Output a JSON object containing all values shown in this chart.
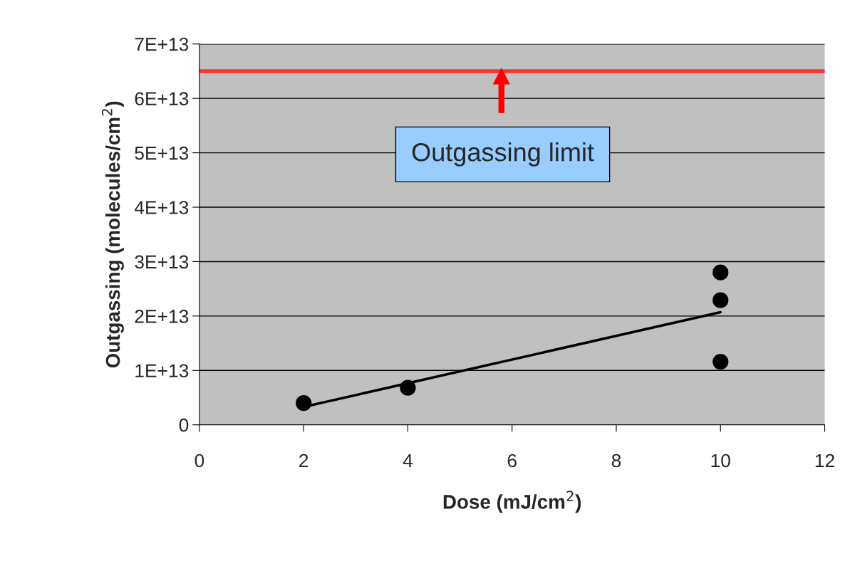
{
  "chart_data": {
    "type": "scatter",
    "xlabel": "Dose (mJ/cm$^{2}$)",
    "ylabel": "Outgassing (molecules/cm$^{2}$)",
    "series": [
      {
        "color": "#000000",
        "x": [
          2,
          4,
          10,
          10,
          10
        ],
        "values": [
          4000000000000.0,
          6800000000000.0,
          28000000000000.0,
          22900000000000.0,
          11600000000000.0
        ]
      },
      {
        "type": "line",
        "marker": "none",
        "color": "#000000",
        "x": [
          2,
          10
        ],
        "values": [
          3300000000000.0,
          20700000000000.0
        ]
      }
    ],
    "xlim": [
      0,
      12
    ],
    "xticks": [
      0,
      2,
      4,
      6,
      8,
      10,
      12
    ],
    "ylim": [
      0,
      70000000000000.0
    ],
    "yticks": [
      0,
      {
        "value": 10000000000000.0,
        "label": "1E+13"
      },
      {
        "value": 20000000000000.0,
        "label": "2E+13"
      },
      {
        "value": 30000000000000.0,
        "label": "3E+13"
      },
      {
        "value": 40000000000000.0,
        "label": "4E+13"
      },
      {
        "value": 50000000000000.0,
        "label": "5E+13"
      },
      {
        "value": 60000000000000.0,
        "label": "6E+13"
      },
      {
        "value": 70000000000000.0,
        "label": "7E+13"
      }
    ],
    "ref_lines": [
      {
        "axis": "y",
        "value": 65000000000000.0,
        "color": "#ff3333"
      }
    ],
    "annotations": [
      "Outgassing limit"
    ],
    "grid": "y",
    "marker": "circle",
    "legend": false
  }
}
